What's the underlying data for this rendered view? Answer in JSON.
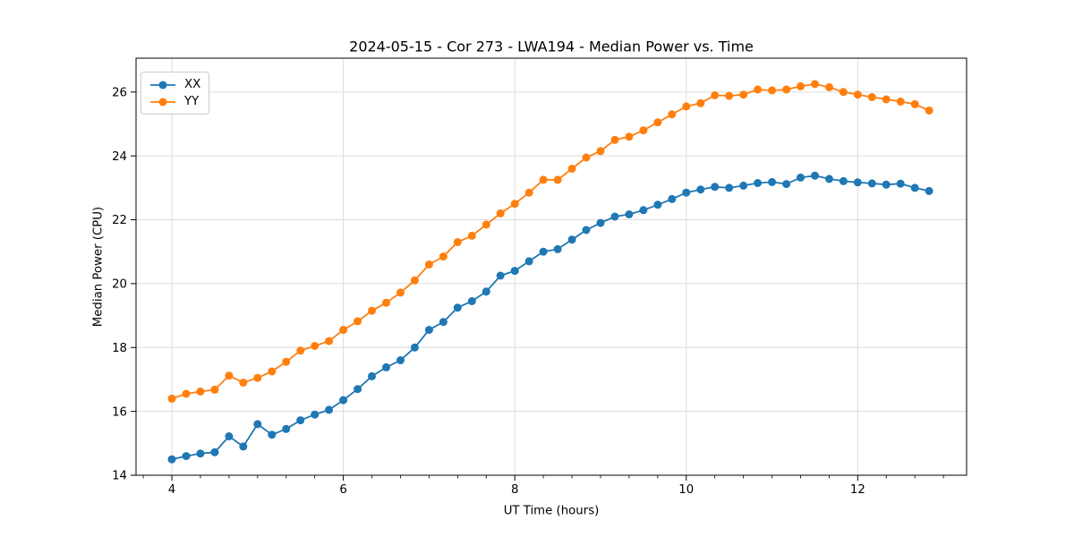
{
  "figure": {
    "title": "2024-05-15 - Cor 273 - LWA194 - Median Power vs. Time",
    "xlabel": "UT Time (hours)",
    "ylabel": "Median Power (CPU)"
  },
  "chart_data": {
    "type": "line",
    "title": "2024-05-15 - Cor 273 - LWA194 - Median Power vs. Time",
    "xlabel": "UT Time (hours)",
    "ylabel": "Median Power (CPU)",
    "xlim": [
      3.582,
      13.27
    ],
    "ylim": [
      14.0,
      27.06
    ],
    "xticks": [
      4,
      6,
      8,
      10,
      12
    ],
    "yticks": [
      14,
      16,
      18,
      20,
      22,
      24,
      26
    ],
    "x_minor_step": 0.33333,
    "grid": true,
    "grid_color": "#dcdcdc",
    "legend_position": "upper left",
    "x": [
      4.0,
      4.167,
      4.333,
      4.5,
      4.667,
      4.833,
      5.0,
      5.167,
      5.333,
      5.5,
      5.667,
      5.833,
      6.0,
      6.167,
      6.333,
      6.5,
      6.667,
      6.833,
      7.0,
      7.167,
      7.333,
      7.5,
      7.667,
      7.833,
      8.0,
      8.167,
      8.333,
      8.5,
      8.667,
      8.833,
      9.0,
      9.167,
      9.333,
      9.5,
      9.667,
      9.833,
      10.0,
      10.167,
      10.333,
      10.5,
      10.667,
      10.833,
      11.0,
      11.167,
      11.333,
      11.5,
      11.667,
      11.833,
      12.0,
      12.167,
      12.333,
      12.5,
      12.667,
      12.833
    ],
    "series": [
      {
        "name": "XX",
        "color": "#1f77b4",
        "values": [
          14.5,
          14.6,
          14.68,
          14.72,
          15.22,
          14.9,
          15.6,
          15.27,
          15.45,
          15.72,
          15.9,
          16.05,
          16.35,
          16.7,
          17.1,
          17.38,
          17.6,
          18.0,
          18.55,
          18.8,
          19.25,
          19.45,
          19.75,
          20.25,
          20.4,
          20.7,
          21.0,
          21.08,
          21.38,
          21.68,
          21.9,
          22.1,
          22.17,
          22.3,
          22.47,
          22.65,
          22.85,
          22.95,
          23.03,
          23.0,
          23.07,
          23.15,
          23.18,
          23.12,
          23.32,
          23.38,
          23.28,
          23.21,
          23.17,
          23.14,
          23.1,
          23.13,
          23.0,
          22.9
        ]
      },
      {
        "name": "YY",
        "color": "#ff7f0e",
        "values": [
          16.4,
          16.55,
          16.62,
          16.68,
          17.12,
          16.9,
          17.05,
          17.25,
          17.55,
          17.9,
          18.05,
          18.2,
          18.55,
          18.82,
          19.15,
          19.4,
          19.72,
          20.1,
          20.6,
          20.85,
          21.3,
          21.5,
          21.85,
          22.2,
          22.5,
          22.85,
          23.25,
          23.25,
          23.6,
          23.95,
          24.15,
          24.5,
          24.6,
          24.8,
          25.05,
          25.3,
          25.55,
          25.65,
          25.9,
          25.88,
          25.92,
          26.08,
          26.05,
          26.08,
          26.18,
          26.25,
          26.15,
          26.0,
          25.92,
          25.84,
          25.77,
          25.7,
          25.62,
          25.42
        ]
      }
    ]
  },
  "legend": {
    "items": [
      {
        "label": "XX"
      },
      {
        "label": "YY"
      }
    ]
  }
}
